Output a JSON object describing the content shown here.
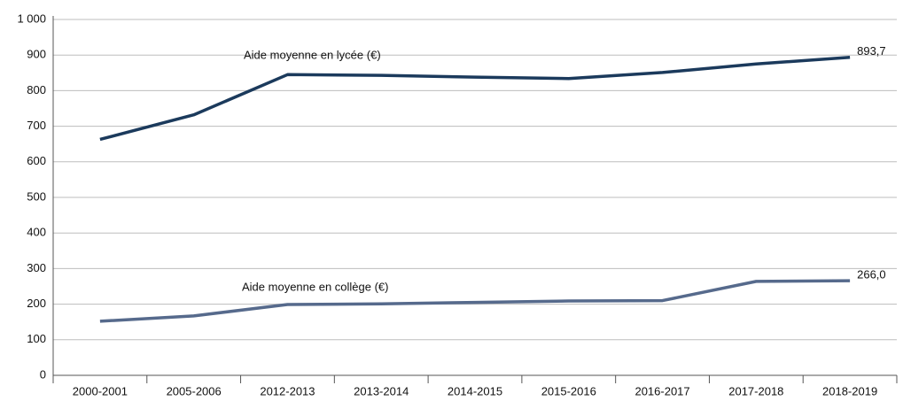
{
  "chart_data": {
    "type": "line",
    "categories": [
      "2000-2001",
      "2005-2006",
      "2012-2013",
      "2013-2014",
      "2014-2015",
      "2015-2016",
      "2016-2017",
      "2017-2018",
      "2018-2019"
    ],
    "series": [
      {
        "name": "Aide moyenne en lycée (€)",
        "color": "#1b3a5c",
        "values": [
          663,
          732,
          845,
          843,
          838,
          834,
          851,
          875,
          893.7
        ],
        "value_labels": [
          null,
          null,
          null,
          null,
          null,
          null,
          null,
          null,
          "893,7"
        ]
      },
      {
        "name": "Aide moyenne en collège (€)",
        "color": "#566a8c",
        "values": [
          152,
          167,
          199,
          201,
          205,
          209,
          210,
          264,
          266.0
        ],
        "value_labels": [
          null,
          null,
          null,
          null,
          null,
          null,
          null,
          null,
          "266,0"
        ]
      }
    ],
    "ylim": [
      0,
      1000
    ],
    "yticks": [
      0,
      100,
      200,
      300,
      400,
      500,
      600,
      700,
      800,
      900,
      {
        "value": 1000,
        "label": "1 000"
      }
    ],
    "grid": true
  }
}
